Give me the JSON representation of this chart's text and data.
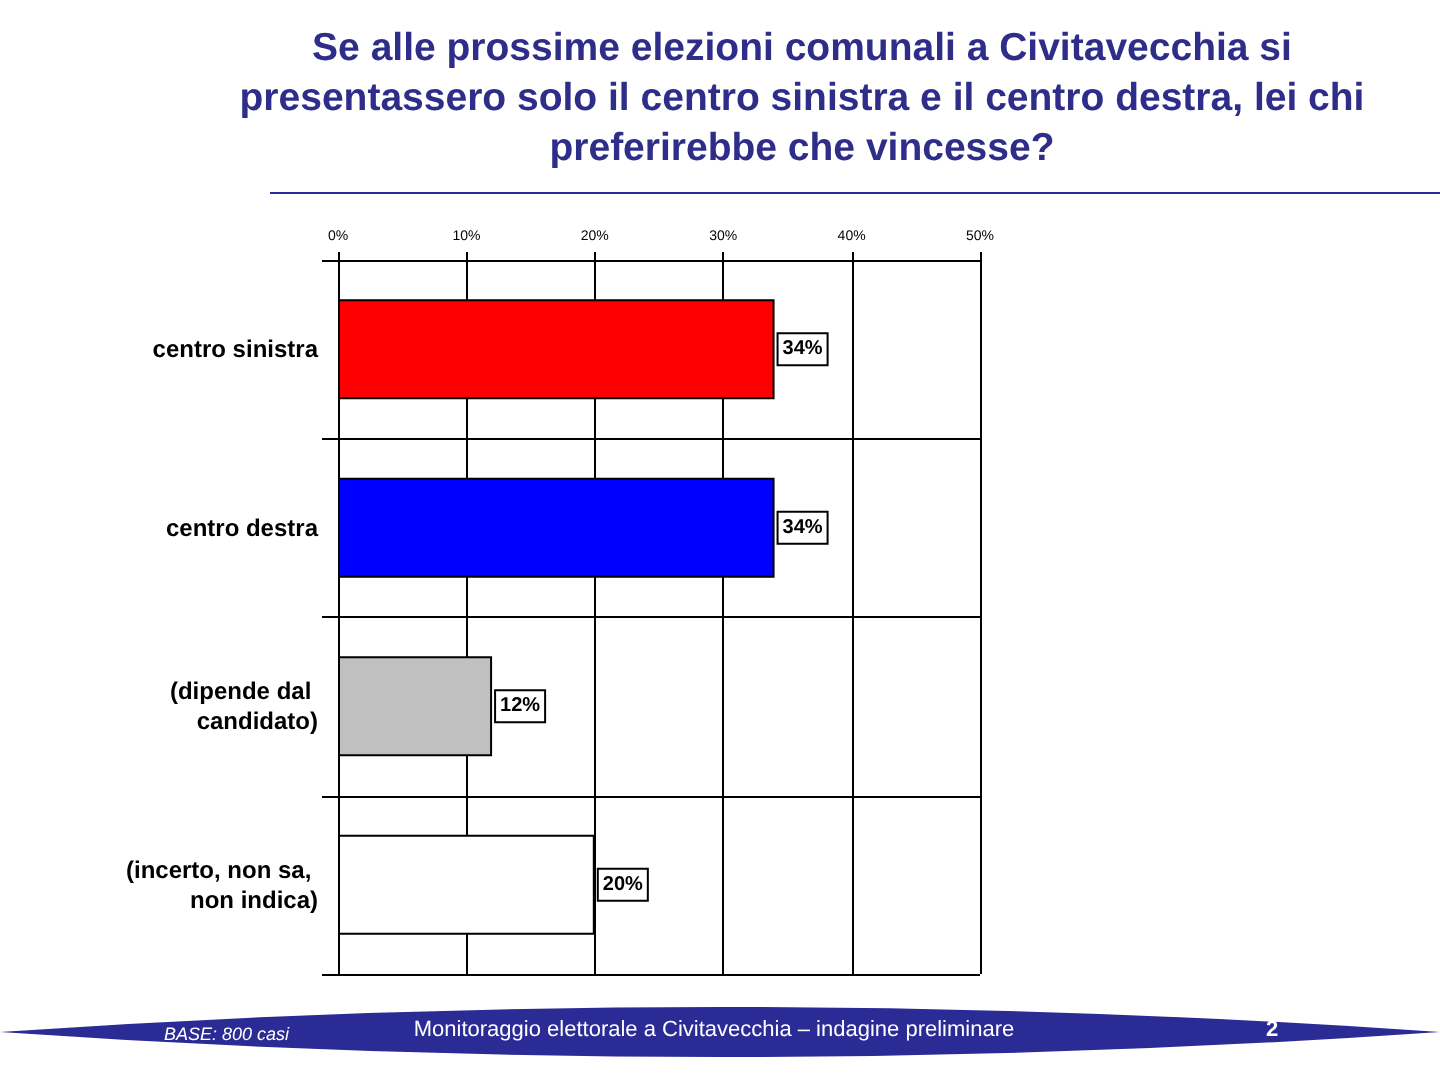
{
  "chart_data": {
    "type": "bar",
    "orientation": "horizontal",
    "title": "Se alle prossime elezioni comunali a Civitavecchia si presentassero solo il centro sinistra e il centro destra, lei chi preferirebbe che vincesse?",
    "categories": [
      "centro sinistra",
      "centro destra",
      "(dipende dal candidato)",
      "(incerto, non sa, non indica)"
    ],
    "values": [
      34,
      34,
      12,
      20
    ],
    "colors": [
      "#ff0000",
      "#0000ff",
      "#c0c0c0",
      "#ffffff"
    ],
    "value_labels": [
      "34%",
      "34%",
      "12%",
      "20%"
    ],
    "xlim": [
      0,
      50
    ],
    "xticks": [
      {
        "value": 0,
        "label": "0%"
      },
      {
        "value": 10,
        "label": "10%"
      },
      {
        "value": 20,
        "label": "20%"
      },
      {
        "value": 30,
        "label": "30%"
      },
      {
        "value": 40,
        "label": "40%"
      },
      {
        "value": 50,
        "label": "50%"
      }
    ],
    "grid": true,
    "annotations": [
      "BASE: 800 casi",
      "Monitoraggio elettorale a Civitavecchia – indagine preliminare",
      "2"
    ]
  }
}
